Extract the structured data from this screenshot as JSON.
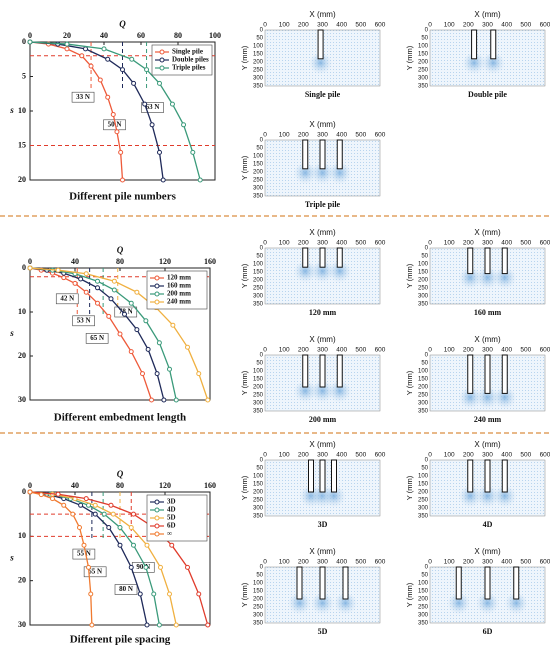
{
  "chart_data": [
    {
      "type": "line",
      "title": "Different pile numbers",
      "xlabel": "Q",
      "ylabel": "s",
      "xlim": [
        0,
        100
      ],
      "xticks": [
        0,
        20,
        40,
        60,
        80,
        100
      ],
      "ylim": [
        0,
        20
      ],
      "yticks": [
        0,
        5,
        10,
        15,
        20
      ],
      "legend": "upper right",
      "hlines": [
        2,
        15
      ],
      "annotations": [
        {
          "label": "33 N",
          "value": 33
        },
        {
          "label": "50 N",
          "value": 50
        },
        {
          "label": "63 N",
          "value": 63
        }
      ],
      "series": [
        {
          "name": "Single pile",
          "color": "#ee5a3a",
          "x": [
            0,
            10,
            20,
            28,
            33,
            38,
            42,
            45,
            47,
            49,
            50
          ],
          "values": [
            0,
            0.3,
            1,
            2,
            3.5,
            5.5,
            8,
            10.5,
            13,
            16,
            20
          ]
        },
        {
          "name": "Double piles",
          "color": "#1f2a5a",
          "x": [
            0,
            15,
            30,
            42,
            50,
            56,
            62,
            66,
            70,
            72
          ],
          "values": [
            0,
            0.3,
            1,
            2.5,
            4,
            6,
            9,
            12,
            16,
            20
          ]
        },
        {
          "name": "Triple piles",
          "color": "#3a9a7a",
          "x": [
            0,
            20,
            40,
            55,
            63,
            70,
            77,
            83,
            88,
            92
          ],
          "values": [
            0,
            0.3,
            1,
            2.5,
            4,
            6,
            9,
            12,
            16,
            20
          ]
        }
      ]
    },
    {
      "type": "line",
      "title": "Different embedment length",
      "xlabel": "Q",
      "ylabel": "s",
      "xlim": [
        0,
        160
      ],
      "xticks": [
        0,
        40,
        80,
        120,
        160
      ],
      "ylim": [
        0,
        30
      ],
      "yticks": [
        0,
        10,
        20,
        30
      ],
      "legend": "upper right",
      "hlines": [
        2
      ],
      "annotations": [
        {
          "label": "42 N",
          "value": 42
        },
        {
          "label": "53 N",
          "value": 53
        },
        {
          "label": "65 N",
          "value": 65
        },
        {
          "label": "78 N",
          "value": 78
        }
      ],
      "series": [
        {
          "name": "120 mm",
          "color": "#ee5a3a",
          "x": [
            0,
            10,
            20,
            30,
            40,
            50,
            60,
            70,
            80,
            90,
            100,
            108
          ],
          "values": [
            0,
            0.5,
            1.2,
            2.2,
            3.5,
            5.5,
            8,
            11,
            15,
            19,
            24,
            30
          ]
        },
        {
          "name": "160 mm",
          "color": "#1f2a5a",
          "x": [
            0,
            15,
            30,
            45,
            60,
            72,
            84,
            95,
            105,
            113,
            119
          ],
          "values": [
            0,
            0.5,
            1.2,
            2.5,
            4.5,
            7,
            10.5,
            14,
            18.5,
            24,
            30
          ]
        },
        {
          "name": "200 mm",
          "color": "#3a9a7a",
          "x": [
            0,
            20,
            40,
            60,
            75,
            90,
            103,
            115,
            124,
            130
          ],
          "values": [
            0,
            0.5,
            1.3,
            3,
            5,
            8,
            12,
            17,
            23,
            30
          ]
        },
        {
          "name": "240 mm",
          "color": "#f0b040",
          "x": [
            0,
            25,
            50,
            75,
            95,
            112,
            127,
            140,
            150,
            158
          ],
          "values": [
            0,
            0.5,
            1.3,
            3,
            5.5,
            9,
            13,
            18,
            24,
            30
          ]
        }
      ]
    },
    {
      "type": "line",
      "title": "Different pile spacing",
      "xlabel": "Q",
      "ylabel": "s",
      "xlim": [
        0,
        160
      ],
      "xticks": [
        0,
        40,
        80,
        120,
        160
      ],
      "ylim": [
        0,
        30
      ],
      "yticks": [
        0,
        10,
        20,
        30
      ],
      "legend": "upper right",
      "hlines": [
        5,
        10
      ],
      "annotations": [
        {
          "label": "55 N",
          "value": 55
        },
        {
          "label": "65 N",
          "value": 65
        },
        {
          "label": "80 N",
          "value": 80
        },
        {
          "label": "90 N",
          "value": 90
        }
      ],
      "series": [
        {
          "name": "3D",
          "color": "#1f2a5a",
          "x": [
            0,
            15,
            30,
            45,
            58,
            70,
            80,
            90,
            98,
            104
          ],
          "values": [
            0,
            0.5,
            1.5,
            3,
            5,
            8,
            12,
            17,
            23,
            30
          ]
        },
        {
          "name": "4D",
          "color": "#3a9a7a",
          "x": [
            0,
            18,
            36,
            52,
            66,
            80,
            92,
            103,
            110,
            115
          ],
          "values": [
            0,
            0.5,
            1.5,
            3,
            5,
            8,
            12,
            17,
            23,
            30
          ]
        },
        {
          "name": "5D",
          "color": "#f0b040",
          "x": [
            0,
            20,
            40,
            58,
            74,
            90,
            104,
            116,
            124,
            130
          ],
          "values": [
            0,
            0.5,
            1.5,
            3,
            5,
            8,
            12,
            17,
            23,
            30
          ]
        },
        {
          "name": "6D",
          "color": "#e03c2c",
          "x": [
            0,
            25,
            50,
            72,
            92,
            110,
            126,
            140,
            150,
            158
          ],
          "values": [
            0,
            0.5,
            1.5,
            3,
            5,
            8,
            12,
            17,
            23,
            30
          ]
        },
        {
          "name": "∞",
          "color": "#f07a30",
          "x": [
            0,
            10,
            20,
            30,
            38,
            44,
            48,
            52,
            54,
            55
          ],
          "values": [
            0,
            0.6,
            1.5,
            3,
            5,
            8,
            12,
            17,
            23,
            30
          ]
        }
      ]
    }
  ],
  "piv": {
    "xlabel": "X (mm)",
    "ylabel": "Y (mm)",
    "xticks": [
      0,
      100,
      200,
      300,
      400,
      500,
      600
    ],
    "yticks": [
      0,
      50,
      100,
      150,
      200,
      250,
      300,
      350
    ],
    "panels": [
      {
        "caption": "Single pile"
      },
      {
        "caption": "Double pile"
      },
      {
        "caption": "Triple pile"
      },
      {
        "caption": "120 mm"
      },
      {
        "caption": "160 mm"
      },
      {
        "caption": "200 mm"
      },
      {
        "caption": "240 mm"
      },
      {
        "caption": "3D"
      },
      {
        "caption": "4D"
      },
      {
        "caption": "5D"
      },
      {
        "caption": "6D"
      }
    ]
  }
}
